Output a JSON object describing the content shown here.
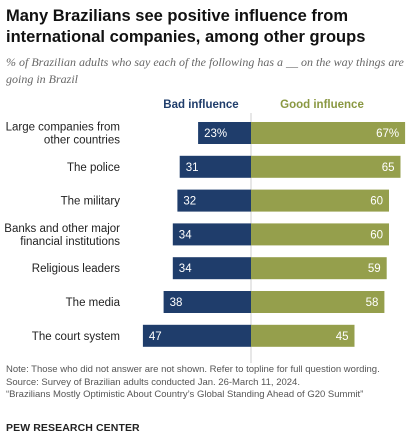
{
  "title": "Many Brazilians see positive influence from international companies, among other groups",
  "subtitle": "% of Brazilian adults who say each of the following has a __ on the way things are going in Brazil",
  "legend": {
    "bad": "Bad influence",
    "good": "Good influence"
  },
  "colors": {
    "bad": "#1f3d6b",
    "good": "#959f4c",
    "divider": "#cfcfcf"
  },
  "chart_data": {
    "type": "bar",
    "orientation": "diverging-horizontal",
    "categories": [
      "Large companies from other countries",
      "The police",
      "The military",
      "Banks and other major financial institutions",
      "Religious leaders",
      "The media",
      "The court system"
    ],
    "category_lines": [
      [
        "Large companies from",
        "other countries"
      ],
      [
        "The police"
      ],
      [
        "The military"
      ],
      [
        "Banks and other major",
        "financial institutions"
      ],
      [
        "Religious leaders"
      ],
      [
        "The media"
      ],
      [
        "The court system"
      ]
    ],
    "series": [
      {
        "name": "Bad influence",
        "values": [
          23,
          31,
          32,
          34,
          34,
          38,
          47
        ],
        "labels": [
          "23%",
          "31",
          "32",
          "34",
          "34",
          "38",
          "47"
        ]
      },
      {
        "name": "Good influence",
        "values": [
          67,
          65,
          60,
          60,
          59,
          58,
          45
        ],
        "labels": [
          "67%",
          "65",
          "60",
          "60",
          "59",
          "58",
          "45"
        ]
      }
    ]
  },
  "footer": {
    "note": "Note: Those who did not answer are not shown. Refer to topline for full question wording.",
    "source": "Source: Survey of Brazilian adults conducted Jan. 26-March 11, 2024.",
    "report": "“Brazilians Mostly Optimistic About Country’s Global Standing Ahead of G20 Summit”",
    "brand": "PEW RESEARCH CENTER"
  }
}
